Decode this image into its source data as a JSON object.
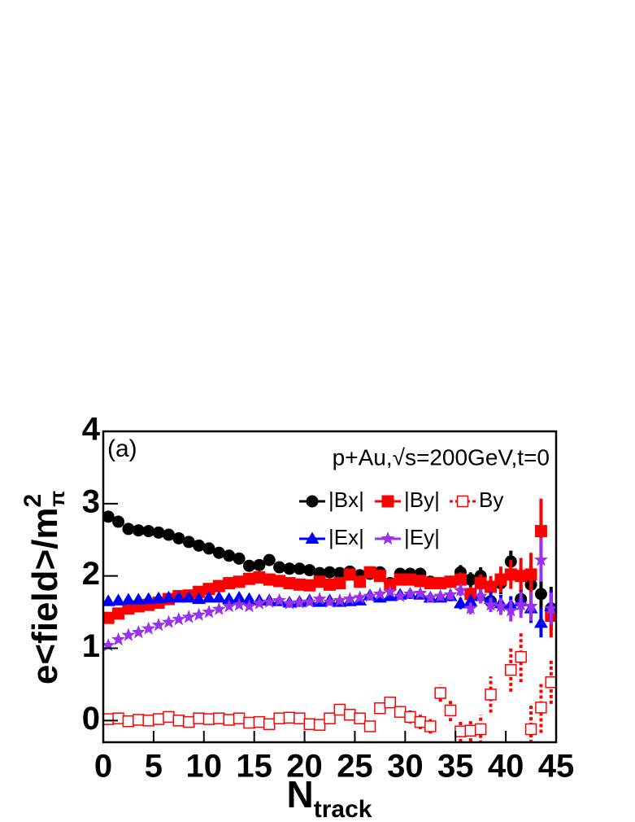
{
  "chart_data": {
    "type": "scatter",
    "y_label": "e<field>/m",
    "y_label_sup": "2",
    "y_label_sub": "π",
    "x_label": "N",
    "x_label_sub": "track",
    "annotations": [
      "(a)",
      "p+Au,√s=200GeV,t=0"
    ],
    "xlim": [
      0,
      45
    ],
    "xticks": [
      0,
      5,
      10,
      15,
      20,
      25,
      30,
      35,
      40,
      45
    ],
    "ylim": [
      -0.3,
      4
    ],
    "yticks": [
      0,
      1,
      2,
      3,
      4
    ],
    "x": [
      0.5,
      1.5,
      2.5,
      3.5,
      4.5,
      5.5,
      6.5,
      7.5,
      8.5,
      9.5,
      10.5,
      11.5,
      12.5,
      13.5,
      14.5,
      15.5,
      16.5,
      17.5,
      18.5,
      19.5,
      20.5,
      21.5,
      22.5,
      23.5,
      24.5,
      25.5,
      26.5,
      27.5,
      28.5,
      29.5,
      30.5,
      31.5,
      32.5,
      33.5,
      34.5,
      35.5,
      36.5,
      37.5,
      38.5,
      39.5,
      40.5,
      41.5,
      42.5,
      43.5,
      44.5
    ],
    "series": [
      {
        "name": "|Bx|",
        "color": "#000000",
        "marker": "circle",
        "values": [
          2.82,
          2.75,
          2.65,
          2.63,
          2.62,
          2.6,
          2.57,
          2.52,
          2.47,
          2.42,
          2.38,
          2.32,
          2.28,
          2.24,
          2.14,
          2.15,
          2.22,
          2.12,
          2.1,
          2.1,
          2.08,
          2.04,
          2.05,
          2.04,
          2.06,
          2.01,
          2.03,
          2.05,
          1.9,
          2.03,
          2.03,
          2.03,
          1.92,
          1.9,
          1.92,
          2.05,
          1.95,
          2.0,
          1.65,
          1.9,
          2.2,
          1.68,
          1.88,
          1.75,
          1.55
        ],
        "errors": [
          0.01,
          0.01,
          0.01,
          0.01,
          0.01,
          0.01,
          0.01,
          0.01,
          0.01,
          0.01,
          0.01,
          0.01,
          0.01,
          0.01,
          0.01,
          0.01,
          0.01,
          0.01,
          0.01,
          0.02,
          0.02,
          0.02,
          0.02,
          0.03,
          0.03,
          0.03,
          0.03,
          0.04,
          0.04,
          0.05,
          0.05,
          0.06,
          0.06,
          0.07,
          0.08,
          0.1,
          0.1,
          0.12,
          0.12,
          0.15,
          0.15,
          0.2,
          0.3,
          0.25,
          0.3
        ]
      },
      {
        "name": "|By|",
        "color": "#ff0000",
        "marker": "square",
        "values": [
          1.42,
          1.48,
          1.55,
          1.58,
          1.6,
          1.63,
          1.68,
          1.72,
          1.73,
          1.78,
          1.82,
          1.86,
          1.9,
          1.92,
          1.96,
          1.98,
          1.95,
          1.93,
          1.9,
          1.88,
          1.87,
          1.92,
          1.88,
          1.9,
          2.02,
          1.92,
          2.05,
          2.0,
          1.88,
          1.95,
          1.95,
          1.93,
          1.9,
          1.9,
          1.92,
          1.95,
          1.75,
          1.9,
          1.85,
          1.95,
          2.02,
          2.0,
          2.02,
          2.62,
          1.45
        ],
        "errors": [
          0.01,
          0.01,
          0.01,
          0.01,
          0.01,
          0.01,
          0.01,
          0.01,
          0.01,
          0.01,
          0.01,
          0.01,
          0.01,
          0.01,
          0.01,
          0.01,
          0.01,
          0.01,
          0.01,
          0.02,
          0.02,
          0.02,
          0.02,
          0.03,
          0.03,
          0.03,
          0.03,
          0.04,
          0.04,
          0.05,
          0.05,
          0.06,
          0.06,
          0.07,
          0.08,
          0.1,
          0.1,
          0.12,
          0.15,
          0.18,
          0.2,
          0.25,
          0.3,
          0.45,
          0.3
        ]
      },
      {
        "name": "By",
        "color": "#ff0000",
        "marker": "open-square",
        "values": [
          0.02,
          0.03,
          -0.01,
          0.01,
          0.0,
          0.02,
          0.05,
          0.0,
          -0.02,
          0.03,
          0.02,
          0.03,
          0.01,
          0.03,
          -0.03,
          -0.02,
          -0.05,
          0.03,
          0.04,
          0.03,
          -0.05,
          -0.06,
          0.03,
          0.15,
          0.08,
          0.03,
          -0.08,
          0.17,
          0.25,
          0.12,
          0.05,
          -0.02,
          -0.08,
          0.38,
          0.14,
          -0.15,
          -0.14,
          -0.12,
          0.36,
          null,
          0.7,
          0.88,
          -0.12,
          0.18,
          0.53
        ],
        "errors": [
          0.02,
          0.02,
          0.02,
          0.02,
          0.02,
          0.02,
          0.02,
          0.02,
          0.02,
          0.02,
          0.02,
          0.02,
          0.02,
          0.02,
          0.02,
          0.02,
          0.02,
          0.02,
          0.02,
          0.03,
          0.03,
          0.03,
          0.03,
          0.04,
          0.05,
          0.05,
          0.06,
          0.07,
          0.08,
          0.08,
          0.09,
          0.1,
          0.1,
          0.12,
          0.15,
          0.15,
          0.15,
          0.2,
          0.25,
          null,
          0.3,
          0.35,
          0.35,
          0.35,
          0.3
        ]
      },
      {
        "name": "|Ex|",
        "color": "#0000ff",
        "marker": "triangle",
        "values": [
          1.65,
          1.66,
          1.67,
          1.67,
          1.68,
          1.69,
          1.7,
          1.7,
          1.7,
          1.68,
          1.7,
          1.7,
          1.68,
          1.7,
          1.68,
          1.66,
          1.66,
          1.65,
          1.63,
          1.64,
          1.66,
          1.64,
          1.66,
          1.64,
          1.65,
          1.66,
          1.73,
          1.7,
          1.72,
          1.74,
          1.75,
          1.74,
          1.7,
          1.7,
          1.72,
          1.62,
          1.65,
          1.72,
          1.68,
          1.62,
          1.6,
          1.65,
          1.55,
          1.35,
          1.58
        ],
        "errors": [
          0.01,
          0.01,
          0.01,
          0.01,
          0.01,
          0.01,
          0.01,
          0.01,
          0.01,
          0.01,
          0.01,
          0.01,
          0.01,
          0.01,
          0.01,
          0.01,
          0.01,
          0.01,
          0.01,
          0.02,
          0.02,
          0.02,
          0.02,
          0.02,
          0.03,
          0.03,
          0.03,
          0.03,
          0.04,
          0.04,
          0.05,
          0.05,
          0.05,
          0.06,
          0.07,
          0.08,
          0.08,
          0.1,
          0.1,
          0.12,
          0.12,
          0.15,
          0.2,
          0.2,
          0.22
        ]
      },
      {
        "name": "|Ey|",
        "color": "#9932ee",
        "marker": "star",
        "values": [
          1.04,
          1.12,
          1.18,
          1.22,
          1.27,
          1.32,
          1.36,
          1.4,
          1.43,
          1.46,
          1.5,
          1.54,
          1.58,
          1.6,
          1.58,
          1.62,
          1.64,
          1.66,
          1.62,
          1.63,
          1.64,
          1.68,
          1.64,
          1.66,
          1.68,
          1.7,
          1.72,
          1.75,
          1.78,
          1.72,
          1.75,
          1.76,
          1.7,
          1.72,
          1.74,
          1.8,
          1.55,
          1.72,
          1.6,
          1.58,
          1.52,
          1.6,
          1.58,
          2.22,
          1.55
        ],
        "errors": [
          0.01,
          0.01,
          0.01,
          0.01,
          0.01,
          0.01,
          0.01,
          0.01,
          0.01,
          0.01,
          0.01,
          0.01,
          0.01,
          0.01,
          0.01,
          0.01,
          0.01,
          0.01,
          0.01,
          0.02,
          0.02,
          0.02,
          0.02,
          0.02,
          0.03,
          0.03,
          0.03,
          0.03,
          0.04,
          0.04,
          0.05,
          0.05,
          0.05,
          0.06,
          0.07,
          0.08,
          0.08,
          0.1,
          0.1,
          0.12,
          0.15,
          0.18,
          0.2,
          0.3,
          0.22
        ]
      }
    ]
  }
}
